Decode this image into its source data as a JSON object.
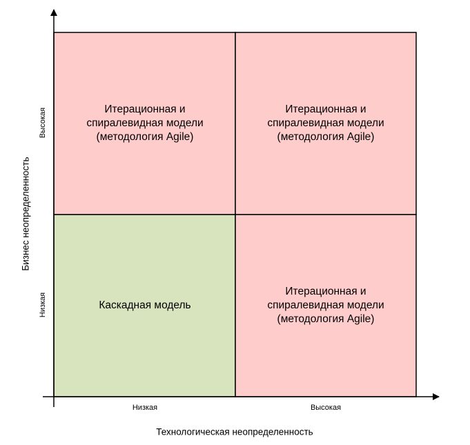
{
  "y_axis": {
    "title": "Бизнес неопределенность",
    "labels": [
      "Высокая",
      "Низкая"
    ]
  },
  "x_axis": {
    "title": "Технологическая неопределенность",
    "labels": [
      "Низкая",
      "Высокая"
    ]
  },
  "quadrants": [
    {
      "lines": [
        "Итерационная и",
        "спиралевидная модели",
        "(методология Agile)"
      ]
    },
    {
      "lines": [
        "Итерационная и",
        "спиралевидная модели",
        "(методология Agile)"
      ]
    },
    {
      "lines": [
        "Каскадная модель"
      ]
    },
    {
      "lines": [
        "Итерационная и",
        "спиралевидная модели",
        "(методология Agile)"
      ]
    }
  ]
}
